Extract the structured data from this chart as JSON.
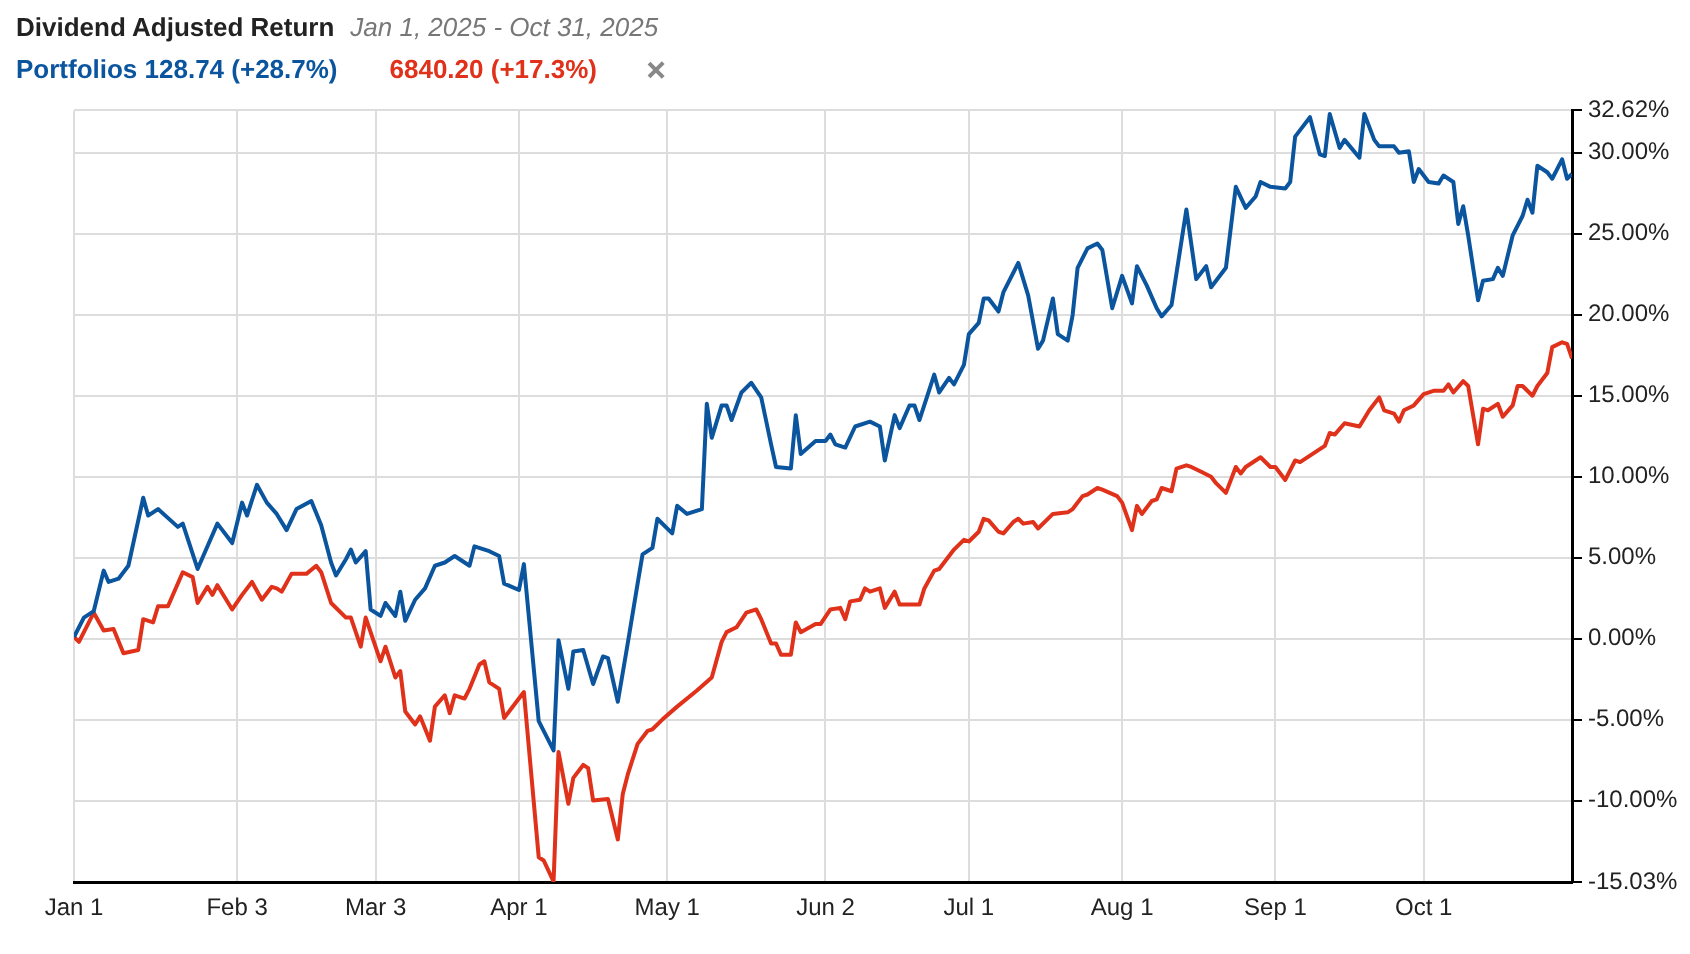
{
  "chart_data": {
    "type": "line",
    "title": "Dividend Adjusted Return",
    "subtitle": "Jan 1, 2025 - Oct 31, 2025",
    "xlim": [
      "2025-01-01",
      "2025-10-31"
    ],
    "xticks": [
      {
        "value": "2025-01-01",
        "label": "Jan 1"
      },
      {
        "value": "2025-02-03",
        "label": "Feb 3"
      },
      {
        "value": "2025-03-03",
        "label": "Mar 3"
      },
      {
        "value": "2025-04-01",
        "label": "Apr 1"
      },
      {
        "value": "2025-05-01",
        "label": "May 1"
      },
      {
        "value": "2025-06-02",
        "label": "Jun 2"
      },
      {
        "value": "2025-07-01",
        "label": "Jul 1"
      },
      {
        "value": "2025-08-01",
        "label": "Aug 1"
      },
      {
        "value": "2025-09-01",
        "label": "Sep 1"
      },
      {
        "value": "2025-10-01",
        "label": "Oct 1"
      }
    ],
    "ylim": [
      -15.03,
      32.62
    ],
    "yticks": [
      {
        "value": -15.03,
        "label": "-15.03%"
      },
      {
        "value": -10,
        "label": "-10.00%"
      },
      {
        "value": -5,
        "label": "-5.00%"
      },
      {
        "value": 0,
        "label": "0.00%"
      },
      {
        "value": 5,
        "label": "5.00%"
      },
      {
        "value": 10,
        "label": "10.00%"
      },
      {
        "value": 15,
        "label": "15.00%"
      },
      {
        "value": 20,
        "label": "20.00%"
      },
      {
        "value": 25,
        "label": "25.00%"
      },
      {
        "value": 30,
        "label": "30.00%"
      },
      {
        "value": 32.62,
        "label": "32.62%"
      }
    ],
    "grid": true,
    "legend": "top left",
    "marker": "none",
    "line_style": "solid",
    "series": [
      {
        "name": "Portfolios 128.74 (+28.7%)",
        "color": "#0b559f",
        "x": [
          "2025-01-01",
          "2025-01-03",
          "2025-01-05",
          "2025-01-07",
          "2025-01-08",
          "2025-01-10",
          "2025-01-12",
          "2025-01-15",
          "2025-01-16",
          "2025-01-18",
          "2025-01-22",
          "2025-01-23",
          "2025-01-26",
          "2025-01-28",
          "2025-01-30",
          "2025-02-02",
          "2025-02-04",
          "2025-02-05",
          "2025-02-07",
          "2025-02-09",
          "2025-02-11",
          "2025-02-13",
          "2025-02-15",
          "2025-02-18",
          "2025-02-20",
          "2025-02-22",
          "2025-02-23",
          "2025-02-25",
          "2025-02-26",
          "2025-02-27",
          "2025-03-01",
          "2025-03-02",
          "2025-03-04",
          "2025-03-05",
          "2025-03-07",
          "2025-03-08",
          "2025-03-09",
          "2025-03-11",
          "2025-03-13",
          "2025-03-15",
          "2025-03-17",
          "2025-03-19",
          "2025-03-22",
          "2025-03-23",
          "2025-03-26",
          "2025-03-28",
          "2025-03-29",
          "2025-04-01",
          "2025-04-02",
          "2025-04-05",
          "2025-04-08",
          "2025-04-09",
          "2025-04-11",
          "2025-04-12",
          "2025-04-14",
          "2025-04-16",
          "2025-04-18",
          "2025-04-19",
          "2025-04-21",
          "2025-04-23",
          "2025-04-25",
          "2025-04-26",
          "2025-04-28",
          "2025-04-29",
          "2025-05-02",
          "2025-05-03",
          "2025-05-05",
          "2025-05-08",
          "2025-05-09",
          "2025-05-10",
          "2025-05-12",
          "2025-05-13",
          "2025-05-14",
          "2025-05-16",
          "2025-05-18",
          "2025-05-20",
          "2025-05-22",
          "2025-05-23",
          "2025-05-26",
          "2025-05-27",
          "2025-05-28",
          "2025-05-31",
          "2025-06-02",
          "2025-06-03",
          "2025-06-04",
          "2025-06-06",
          "2025-06-08",
          "2025-06-11",
          "2025-06-13",
          "2025-06-14",
          "2025-06-16",
          "2025-06-17",
          "2025-06-19",
          "2025-06-20",
          "2025-06-21",
          "2025-06-24",
          "2025-06-25",
          "2025-06-27",
          "2025-06-28",
          "2025-06-30",
          "2025-07-01",
          "2025-07-03",
          "2025-07-04",
          "2025-07-05",
          "2025-07-07",
          "2025-07-08",
          "2025-07-11",
          "2025-07-13",
          "2025-07-15",
          "2025-07-16",
          "2025-07-18",
          "2025-07-19",
          "2025-07-21",
          "2025-07-22",
          "2025-07-23",
          "2025-07-25",
          "2025-07-27",
          "2025-07-28",
          "2025-07-30",
          "2025-08-01",
          "2025-08-03",
          "2025-08-04",
          "2025-08-06",
          "2025-08-08",
          "2025-08-09",
          "2025-08-11",
          "2025-08-14",
          "2025-08-16",
          "2025-08-18",
          "2025-08-19",
          "2025-08-22",
          "2025-08-24",
          "2025-08-26",
          "2025-08-28",
          "2025-08-29",
          "2025-08-31",
          "2025-09-03",
          "2025-09-04",
          "2025-09-05",
          "2025-09-06",
          "2025-09-08",
          "2025-09-10",
          "2025-09-11",
          "2025-09-12",
          "2025-09-14",
          "2025-09-15",
          "2025-09-18",
          "2025-09-19",
          "2025-09-21",
          "2025-09-22",
          "2025-09-25",
          "2025-09-26",
          "2025-09-28",
          "2025-09-29",
          "2025-09-30",
          "2025-10-02",
          "2025-10-04",
          "2025-10-05",
          "2025-10-07",
          "2025-10-08",
          "2025-10-09",
          "2025-10-10",
          "2025-10-12",
          "2025-10-13",
          "2025-10-15",
          "2025-10-16",
          "2025-10-17",
          "2025-10-19",
          "2025-10-21",
          "2025-10-22",
          "2025-10-23",
          "2025-10-24",
          "2025-10-26",
          "2025-10-27",
          "2025-10-29",
          "2025-10-30",
          "2025-10-31"
        ],
        "values": [
          0.1,
          1.3,
          1.7,
          4.2,
          3.5,
          3.7,
          4.5,
          8.7,
          7.6,
          8.0,
          6.9,
          7.1,
          4.3,
          5.7,
          7.1,
          5.9,
          8.4,
          7.6,
          9.5,
          8.4,
          7.7,
          6.7,
          8.0,
          8.5,
          7.0,
          4.7,
          3.9,
          4.9,
          5.5,
          4.7,
          5.4,
          1.8,
          1.4,
          2.2,
          1.4,
          2.9,
          1.1,
          2.4,
          3.1,
          4.5,
          4.7,
          5.1,
          4.5,
          5.7,
          5.4,
          5.1,
          3.4,
          3.0,
          4.6,
          -5.1,
          -6.9,
          -0.1,
          -3.1,
          -0.8,
          -0.7,
          -2.8,
          -1.1,
          -1.2,
          -3.9,
          -0.3,
          3.4,
          5.2,
          5.6,
          7.4,
          6.5,
          8.2,
          7.7,
          8.0,
          14.5,
          12.4,
          14.4,
          14.4,
          13.5,
          15.2,
          15.8,
          14.9,
          12.0,
          10.6,
          10.5,
          13.8,
          11.4,
          12.2,
          12.2,
          12.6,
          12.0,
          11.8,
          13.1,
          13.4,
          13.1,
          11.0,
          13.8,
          13.0,
          14.4,
          14.4,
          13.5,
          16.3,
          15.2,
          16.1,
          15.7,
          16.9,
          18.8,
          19.5,
          21.0,
          21.0,
          20.2,
          21.4,
          23.2,
          21.2,
          17.9,
          18.4,
          21.0,
          18.8,
          18.4,
          20.0,
          22.9,
          24.1,
          24.4,
          24.0,
          20.4,
          22.4,
          20.7,
          23.0,
          21.8,
          20.4,
          19.9,
          20.6,
          26.5,
          22.2,
          23.0,
          21.7,
          22.9,
          27.9,
          26.6,
          27.3,
          28.2,
          27.9,
          27.8,
          28.2,
          31.0,
          31.4,
          32.2,
          29.9,
          29.8,
          32.4,
          30.3,
          30.8,
          29.7,
          32.4,
          30.8,
          30.4,
          30.4,
          30.0,
          30.1,
          28.2,
          29.0,
          28.2,
          28.1,
          28.6,
          28.2,
          25.6,
          26.7,
          24.9,
          20.9,
          22.1,
          22.2,
          22.9,
          22.4,
          24.9,
          26.1,
          27.1,
          26.3,
          29.2,
          28.8,
          28.4,
          29.6,
          28.4,
          28.7
        ]
      },
      {
        "name": "6840.20 (+17.3%)",
        "color": "#e0311b",
        "x": [
          "2025-01-01",
          "2025-01-02",
          "2025-01-04",
          "2025-01-05",
          "2025-01-07",
          "2025-01-09",
          "2025-01-11",
          "2025-01-14",
          "2025-01-15",
          "2025-01-17",
          "2025-01-18",
          "2025-01-20",
          "2025-01-23",
          "2025-01-25",
          "2025-01-26",
          "2025-01-28",
          "2025-01-29",
          "2025-01-30",
          "2025-02-02",
          "2025-02-04",
          "2025-02-06",
          "2025-02-08",
          "2025-02-10",
          "2025-02-11",
          "2025-02-12",
          "2025-02-14",
          "2025-02-17",
          "2025-02-19",
          "2025-02-20",
          "2025-02-22",
          "2025-02-25",
          "2025-02-26",
          "2025-02-28",
          "2025-03-01",
          "2025-03-04",
          "2025-03-05",
          "2025-03-07",
          "2025-03-08",
          "2025-03-09",
          "2025-03-11",
          "2025-03-12",
          "2025-03-14",
          "2025-03-15",
          "2025-03-17",
          "2025-03-18",
          "2025-03-19",
          "2025-03-21",
          "2025-03-22",
          "2025-03-24",
          "2025-03-25",
          "2025-03-26",
          "2025-03-28",
          "2025-03-29",
          "2025-03-31",
          "2025-04-02",
          "2025-04-05",
          "2025-04-06",
          "2025-04-08",
          "2025-04-09",
          "2025-04-11",
          "2025-04-12",
          "2025-04-14",
          "2025-04-15",
          "2025-04-16",
          "2025-04-19",
          "2025-04-21",
          "2025-04-22",
          "2025-04-23",
          "2025-04-25",
          "2025-04-27",
          "2025-04-28",
          "2025-04-30",
          "2025-05-03",
          "2025-05-07",
          "2025-05-10",
          "2025-05-12",
          "2025-05-13",
          "2025-05-15",
          "2025-05-17",
          "2025-05-19",
          "2025-05-20",
          "2025-05-22",
          "2025-05-23",
          "2025-05-24",
          "2025-05-26",
          "2025-05-27",
          "2025-05-28",
          "2025-05-31",
          "2025-06-01",
          "2025-06-03",
          "2025-06-05",
          "2025-06-06",
          "2025-06-07",
          "2025-06-09",
          "2025-06-10",
          "2025-06-11",
          "2025-06-13",
          "2025-06-14",
          "2025-06-16",
          "2025-06-17",
          "2025-06-21",
          "2025-06-22",
          "2025-06-24",
          "2025-06-25",
          "2025-06-27",
          "2025-06-28",
          "2025-06-30",
          "2025-07-01",
          "2025-07-03",
          "2025-07-04",
          "2025-07-05",
          "2025-07-07",
          "2025-07-08",
          "2025-07-10",
          "2025-07-11",
          "2025-07-12",
          "2025-07-14",
          "2025-07-15",
          "2025-07-18",
          "2025-07-21",
          "2025-07-22",
          "2025-07-24",
          "2025-07-25",
          "2025-07-27",
          "2025-07-28",
          "2025-07-31",
          "2025-08-01",
          "2025-08-03",
          "2025-08-04",
          "2025-08-05",
          "2025-08-07",
          "2025-08-08",
          "2025-08-09",
          "2025-08-11",
          "2025-08-12",
          "2025-08-14",
          "2025-08-15",
          "2025-08-17",
          "2025-08-19",
          "2025-08-20",
          "2025-08-22",
          "2025-08-24",
          "2025-08-25",
          "2025-08-26",
          "2025-08-29",
          "2025-08-31",
          "2025-09-01",
          "2025-09-03",
          "2025-09-05",
          "2025-09-06",
          "2025-09-09",
          "2025-09-11",
          "2025-09-12",
          "2025-09-13",
          "2025-09-15",
          "2025-09-18",
          "2025-09-20",
          "2025-09-22",
          "2025-09-23",
          "2025-09-25",
          "2025-09-26",
          "2025-09-27",
          "2025-09-29",
          "2025-10-01",
          "2025-10-03",
          "2025-10-05",
          "2025-10-06",
          "2025-10-07",
          "2025-10-09",
          "2025-10-10",
          "2025-10-12",
          "2025-10-13",
          "2025-10-14",
          "2025-10-16",
          "2025-10-17",
          "2025-10-19",
          "2025-10-20",
          "2025-10-21",
          "2025-10-23",
          "2025-10-24",
          "2025-10-26",
          "2025-10-27",
          "2025-10-29",
          "2025-10-30",
          "2025-10-31"
        ],
        "values": [
          0.1,
          -0.2,
          1.0,
          1.6,
          0.5,
          0.6,
          -0.9,
          -0.7,
          1.2,
          1.0,
          2.0,
          2.0,
          4.1,
          3.8,
          2.2,
          3.2,
          2.7,
          3.3,
          1.8,
          2.7,
          3.5,
          2.4,
          3.2,
          3.1,
          2.9,
          4.0,
          4.0,
          4.5,
          4.1,
          2.2,
          1.3,
          1.3,
          -0.5,
          1.3,
          -1.4,
          -0.5,
          -2.4,
          -2.0,
          -4.5,
          -5.3,
          -4.8,
          -6.3,
          -4.2,
          -3.5,
          -4.6,
          -3.5,
          -3.7,
          -3.1,
          -1.6,
          -1.4,
          -2.7,
          -3.1,
          -4.9,
          -4.1,
          -3.3,
          -13.5,
          -13.7,
          -15.0,
          -7.0,
          -10.2,
          -8.6,
          -7.8,
          -8.0,
          -10.0,
          -9.9,
          -12.4,
          -9.6,
          -8.4,
          -6.5,
          -5.7,
          -5.6,
          -5.0,
          -4.2,
          -3.2,
          -2.4,
          -0.2,
          0.4,
          0.7,
          1.6,
          1.8,
          1.2,
          -0.3,
          -0.3,
          -1.0,
          -1.0,
          1.0,
          0.4,
          0.9,
          0.9,
          1.8,
          1.9,
          1.2,
          2.3,
          2.4,
          3.1,
          2.9,
          3.1,
          1.9,
          2.9,
          2.1,
          2.1,
          3.1,
          4.2,
          4.3,
          5.1,
          5.5,
          6.1,
          6.0,
          6.6,
          7.4,
          7.3,
          6.6,
          6.5,
          7.2,
          7.4,
          7.1,
          7.2,
          6.8,
          7.7,
          7.8,
          8.0,
          8.8,
          8.9,
          9.3,
          9.2,
          8.8,
          8.4,
          6.7,
          8.2,
          7.7,
          8.5,
          8.6,
          9.3,
          9.1,
          10.5,
          10.7,
          10.6,
          10.3,
          10.0,
          9.6,
          9.0,
          10.6,
          10.2,
          10.6,
          11.2,
          10.6,
          10.6,
          9.8,
          11.0,
          10.9,
          11.5,
          11.9,
          12.7,
          12.6,
          13.3,
          13.1,
          14.1,
          14.9,
          14.1,
          13.9,
          13.4,
          14.1,
          14.4,
          15.1,
          15.3,
          15.3,
          15.7,
          15.2,
          15.9,
          15.6,
          12.0,
          14.2,
          14.1,
          14.5,
          13.7,
          14.4,
          15.6,
          15.6,
          15.0,
          15.6,
          16.4,
          18.0,
          18.3,
          18.2,
          17.3
        ]
      }
    ]
  }
}
